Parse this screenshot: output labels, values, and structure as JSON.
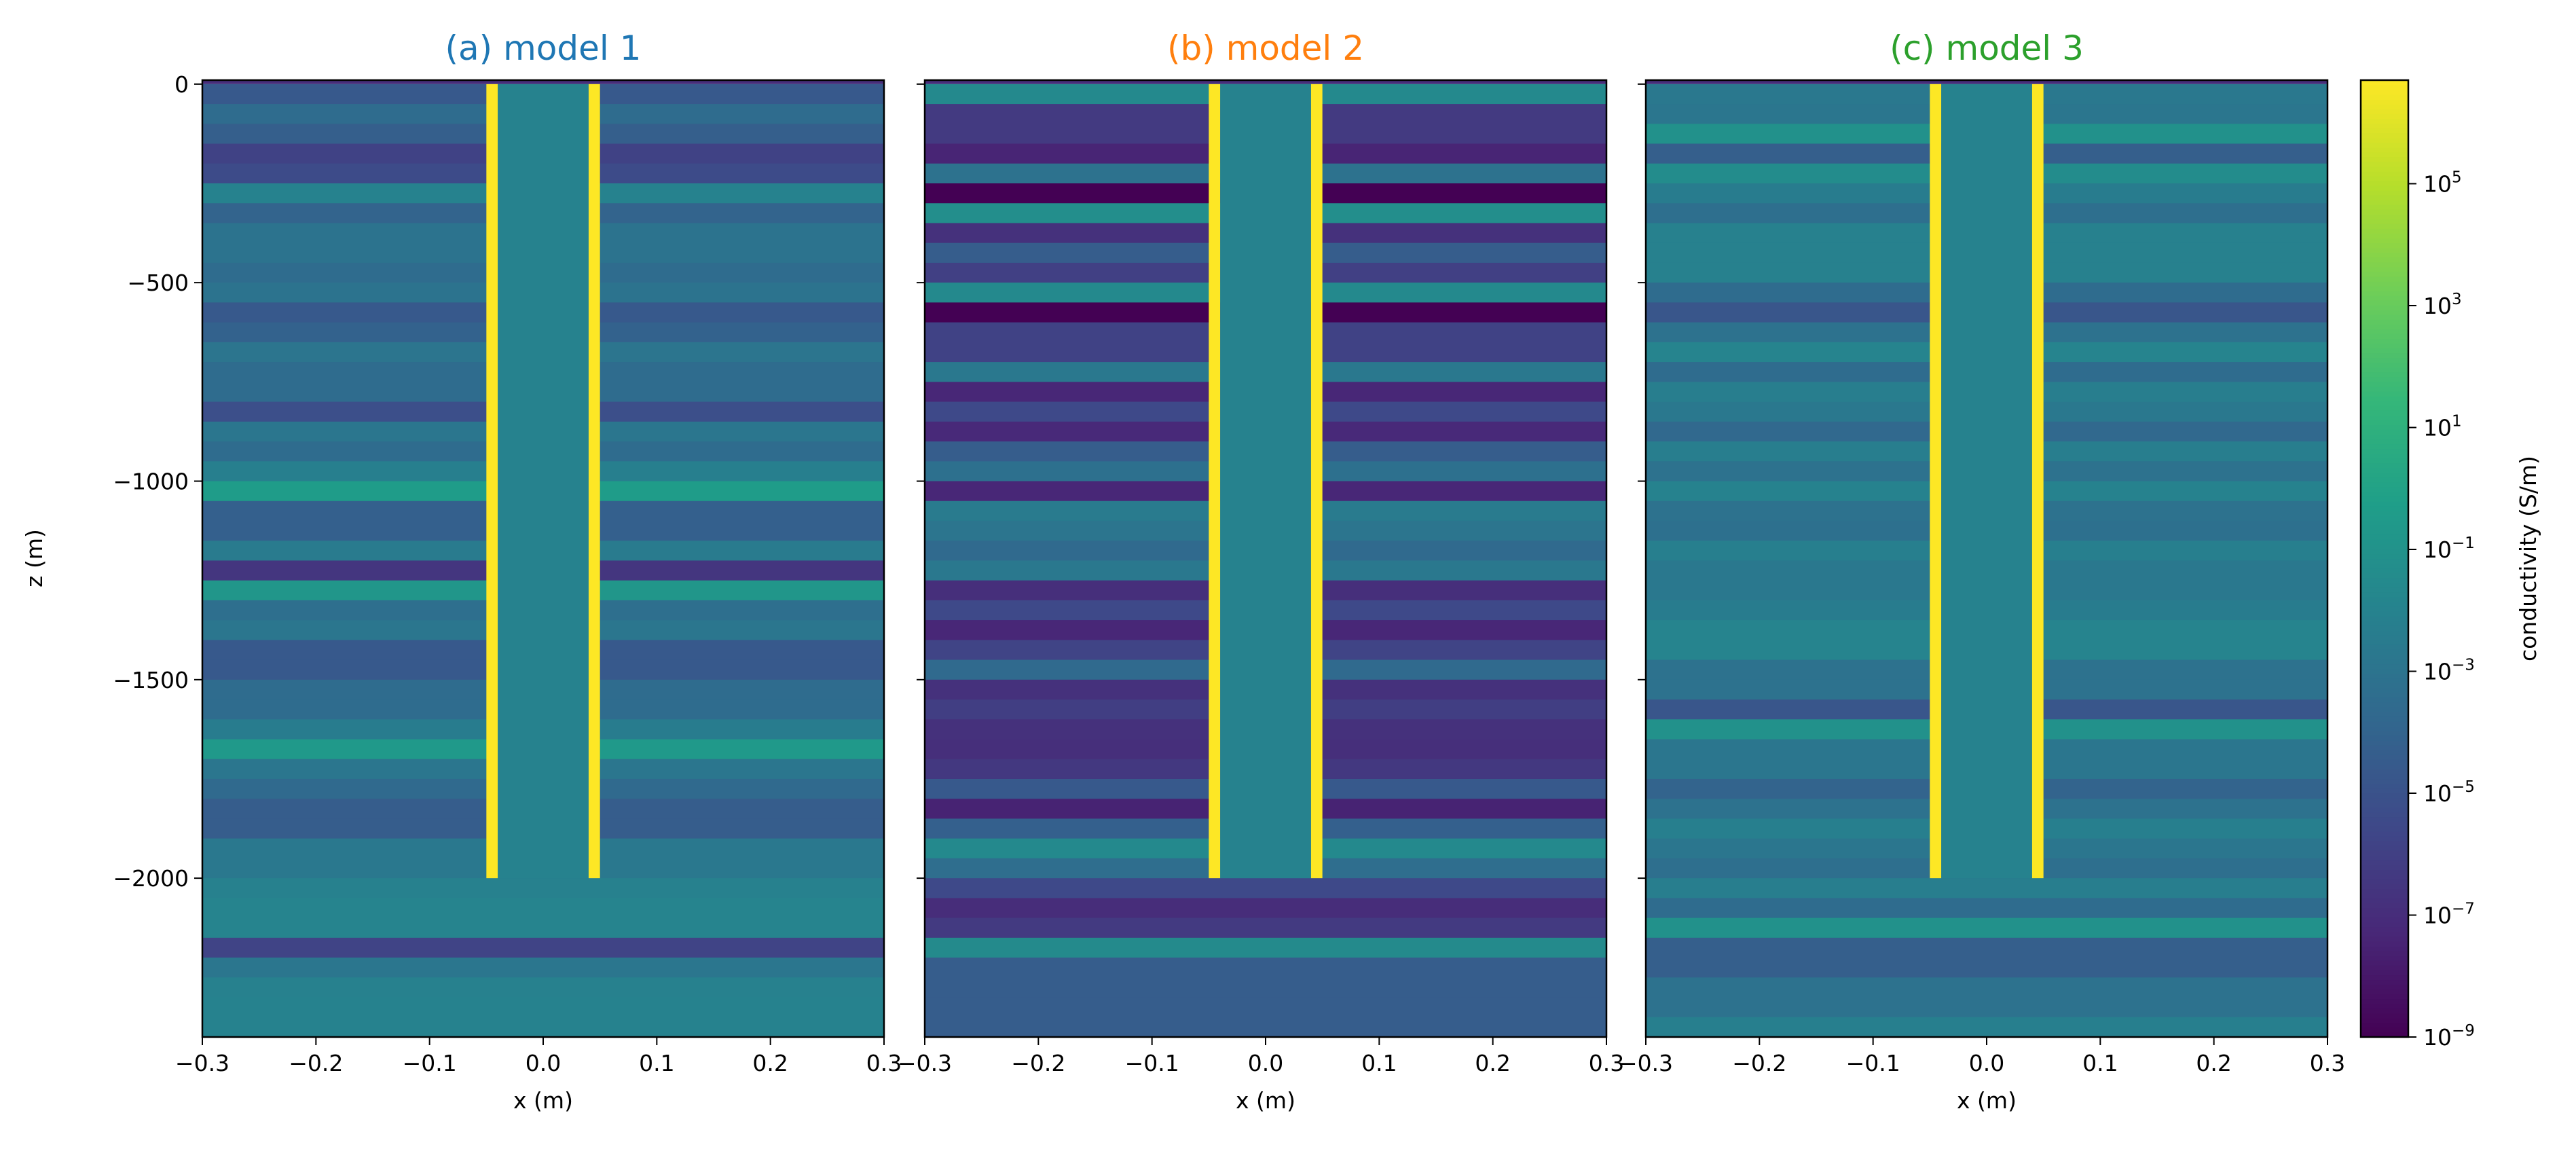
{
  "chart_data": {
    "type": "heatmap",
    "color_scale": "viridis",
    "colorbar": {
      "label": "conductivity (S/m)",
      "scale": "log",
      "range": [
        1e-09,
        5000000.0
      ],
      "ticks": [
        {
          "base": "10",
          "exp": "5",
          "value": 100000.0
        },
        {
          "base": "10",
          "exp": "3",
          "value": 1000.0
        },
        {
          "base": "10",
          "exp": "1",
          "value": 10.0
        },
        {
          "base": "10",
          "exp": "−1",
          "value": 0.1
        },
        {
          "base": "10",
          "exp": "−3",
          "value": 0.001
        },
        {
          "base": "10",
          "exp": "−5",
          "value": 1e-05
        },
        {
          "base": "10",
          "exp": "−7",
          "value": 1e-07
        },
        {
          "base": "10",
          "exp": "−9",
          "value": 1e-09
        }
      ]
    },
    "xlabel": "x (m)",
    "ylabel": "z (m)",
    "xlim": [
      -0.3,
      0.3
    ],
    "ylim": [
      -2400,
      10
    ],
    "x_ticks": [
      {
        "value": -0.3,
        "label": "−0.3"
      },
      {
        "value": -0.2,
        "label": "−0.2"
      },
      {
        "value": -0.1,
        "label": "−0.1"
      },
      {
        "value": 0,
        "label": "0.0"
      },
      {
        "value": 0.1,
        "label": "0.1"
      },
      {
        "value": 0.2,
        "label": "0.2"
      },
      {
        "value": 0.3,
        "label": "0.3"
      }
    ],
    "y_ticks": [
      {
        "value": 0,
        "label": "0"
      },
      {
        "value": -500,
        "label": "−500"
      },
      {
        "value": -1000,
        "label": "−1000"
      },
      {
        "value": -1500,
        "label": "−1500"
      },
      {
        "value": -2000,
        "label": "−2000"
      }
    ],
    "layer_thickness_m": 50,
    "above_surface_conductivity": 1e-07,
    "borehole": {
      "casing_inner_radius": 0.04,
      "casing_outer_radius": 0.05,
      "casing_bottom_z": -2000,
      "casing_conductivity": 5000000.0,
      "interior_conductivity": 0.01
    },
    "panels": [
      {
        "title": "(a) model 1",
        "title_color": "#1f77b4",
        "layer_conductivity": [
          2.5e-05,
          0.00032,
          5e-05,
          1.26e-06,
          4e-06,
          0.01,
          0.0001,
          0.001,
          0.001,
          0.00032,
          0.001,
          2.5e-05,
          7.9e-05,
          0.00126,
          0.00032,
          0.00032,
          6.3e-06,
          0.0016,
          0.00032,
          0.0063,
          0.4,
          6.3e-05,
          6.3e-05,
          0.0032,
          3.2e-07,
          0.16,
          0.0005,
          0.0016,
          2.5e-05,
          2.5e-05,
          0.00032,
          0.00032,
          0.004,
          0.25,
          0.0016,
          0.00025,
          4e-05,
          4e-05,
          0.002,
          0.002,
          0.0079,
          0.0126,
          0.0126,
          1.6e-06,
          0.0016,
          0.0079,
          0.01,
          0.01
        ]
      },
      {
        "title": "(b) model 2",
        "title_color": "#ff7f0e",
        "layer_conductivity": [
          0.025,
          5e-07,
          5e-07,
          4e-08,
          0.00079,
          1e-09,
          0.05,
          1.6e-07,
          4e-05,
          1e-06,
          0.025,
          1e-09,
          1.26e-06,
          1.26e-06,
          0.002,
          5e-08,
          3.2e-06,
          6.3e-08,
          4e-05,
          0.00063,
          5e-08,
          0.0032,
          0.00126,
          0.00025,
          0.002,
          1.26e-07,
          3.2e-06,
          5e-08,
          1.6e-06,
          0.00025,
          1.6e-07,
          7.9e-07,
          1.6e-07,
          1.26e-07,
          4e-07,
          2.5e-05,
          3.2e-08,
          6.3e-05,
          0.025,
          0.0004,
          3.2e-06,
          1e-07,
          5e-07,
          0.032,
          4e-05,
          4e-05,
          4e-05,
          4e-05
        ]
      },
      {
        "title": "(c) model 3",
        "title_color": "#2ca02c",
        "layer_conductivity": [
          0.002,
          0.0016,
          0.079,
          5e-05,
          0.04,
          0.004,
          0.0005,
          0.0079,
          0.0079,
          0.0079,
          0.00032,
          1.6e-05,
          0.00079,
          0.0126,
          0.00032,
          0.005,
          0.002,
          0.0002,
          0.005,
          0.00079,
          0.01,
          0.00079,
          0.00063,
          0.0063,
          0.002,
          0.002,
          0.004,
          0.0126,
          0.0126,
          0.00079,
          0.00079,
          1.6e-05,
          0.079,
          0.0016,
          0.0016,
          0.0001,
          0.00079,
          0.0063,
          0.0016,
          0.0005,
          0.005,
          0.00032,
          0.079,
          5e-05,
          5e-05,
          0.00079,
          0.00079,
          0.0063
        ]
      }
    ]
  }
}
